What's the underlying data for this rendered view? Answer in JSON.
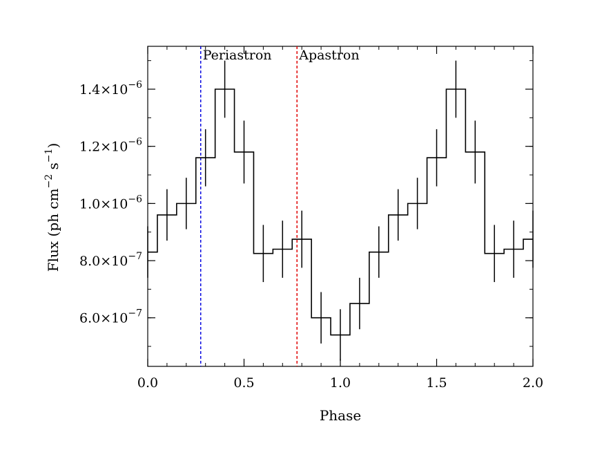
{
  "chart_data": {
    "type": "line",
    "style": "step-histogram-with-error-bars",
    "title": "",
    "xlabel": "Phase",
    "ylabel": "Flux (ph cm",
    "ylabel_exp1": "−2",
    "ylabel_mid": " s",
    "ylabel_exp2": "−1",
    "ylabel_end": ")",
    "xlim": [
      0.0,
      2.0
    ],
    "ylim": [
      4.3e-07,
      1.55e-06
    ],
    "x_ticks": [
      {
        "value": 0.0,
        "label": "0.0"
      },
      {
        "value": 0.5,
        "label": "0.5"
      },
      {
        "value": 1.0,
        "label": "1.0"
      },
      {
        "value": 1.5,
        "label": "1.5"
      },
      {
        "value": 2.0,
        "label": "2.0"
      }
    ],
    "y_ticks": [
      {
        "value": 6e-07,
        "mantissa": "6.0×10",
        "exponent": "−7"
      },
      {
        "value": 8e-07,
        "mantissa": "8.0×10",
        "exponent": "−7"
      },
      {
        "value": 1e-06,
        "mantissa": "1.0×10",
        "exponent": "−6"
      },
      {
        "value": 1.2e-06,
        "mantissa": "1.2×10",
        "exponent": "−6"
      },
      {
        "value": 1.4e-06,
        "mantissa": "1.4×10",
        "exponent": "−6"
      }
    ],
    "bin_width": 0.1,
    "series": [
      {
        "name": "Flux",
        "x": [
          0.0,
          0.1,
          0.2,
          0.3,
          0.4,
          0.5,
          0.6,
          0.7,
          0.8,
          0.9,
          1.0,
          1.1,
          1.2,
          1.3,
          1.4,
          1.5,
          1.6,
          1.7,
          1.8,
          1.9,
          2.0
        ],
        "values": [
          8.3e-07,
          9.6e-07,
          1e-06,
          1.16e-06,
          1.4e-06,
          1.18e-06,
          8.25e-07,
          8.4e-07,
          8.75e-07,
          6e-07,
          5.4e-07,
          6.5e-07,
          8.3e-07,
          9.6e-07,
          1e-06,
          1.16e-06,
          1.4e-06,
          1.18e-06,
          8.25e-07,
          8.4e-07,
          8.75e-07
        ],
        "errors": [
          9e-08,
          9e-08,
          9e-08,
          1e-07,
          1e-07,
          1.1e-07,
          1e-07,
          1e-07,
          1e-07,
          9e-08,
          9e-08,
          9e-08,
          9e-08,
          9e-08,
          9e-08,
          1e-07,
          1e-07,
          1.1e-07,
          1e-07,
          1e-07,
          1e-07
        ]
      }
    ],
    "annotations": [
      {
        "label": "Periastron",
        "x": 0.275,
        "color": "#0000e0"
      },
      {
        "label": "Apastron",
        "x": 0.775,
        "color": "#e00000"
      }
    ]
  }
}
